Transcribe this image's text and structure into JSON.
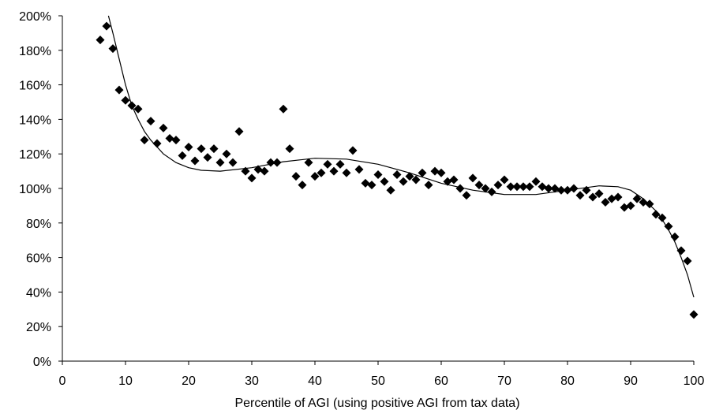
{
  "chart_data": {
    "type": "scatter",
    "title": "",
    "xlabel": "Percentile of AGI (using positive AGI from tax data)",
    "ylabel": "",
    "xlim": [
      0,
      100
    ],
    "ylim": [
      0,
      200
    ],
    "x_ticks": [
      0,
      10,
      20,
      30,
      40,
      50,
      60,
      70,
      80,
      90,
      100
    ],
    "x_tick_labels": [
      "0",
      "10",
      "20",
      "30",
      "40",
      "50",
      "60",
      "70",
      "80",
      "90",
      "100"
    ],
    "y_ticks": [
      0,
      20,
      40,
      60,
      80,
      100,
      120,
      140,
      160,
      180,
      200
    ],
    "y_tick_labels": [
      "0%",
      "20%",
      "40%",
      "60%",
      "80%",
      "100%",
      "120%",
      "140%",
      "160%",
      "180%",
      "200%"
    ],
    "grid": false,
    "legend": "none",
    "marker": "diamond",
    "marker_color": "#000000",
    "points": [
      [
        6,
        186
      ],
      [
        7,
        194
      ],
      [
        8,
        181
      ],
      [
        9,
        157
      ],
      [
        10,
        151
      ],
      [
        11,
        148
      ],
      [
        12,
        146
      ],
      [
        13,
        128
      ],
      [
        14,
        139
      ],
      [
        15,
        126
      ],
      [
        16,
        135
      ],
      [
        17,
        129
      ],
      [
        18,
        128
      ],
      [
        19,
        119
      ],
      [
        20,
        124
      ],
      [
        21,
        116
      ],
      [
        22,
        123
      ],
      [
        23,
        118
      ],
      [
        24,
        123
      ],
      [
        25,
        115
      ],
      [
        26,
        120
      ],
      [
        27,
        115
      ],
      [
        28,
        133
      ],
      [
        29,
        110
      ],
      [
        30,
        106
      ],
      [
        31,
        111
      ],
      [
        32,
        110
      ],
      [
        33,
        115
      ],
      [
        34,
        115
      ],
      [
        35,
        146
      ],
      [
        36,
        123
      ],
      [
        37,
        107
      ],
      [
        38,
        102
      ],
      [
        39,
        115
      ],
      [
        40,
        107
      ],
      [
        41,
        109
      ],
      [
        42,
        114
      ],
      [
        43,
        110
      ],
      [
        44,
        114
      ],
      [
        45,
        109
      ],
      [
        46,
        122
      ],
      [
        47,
        111
      ],
      [
        48,
        103
      ],
      [
        49,
        102
      ],
      [
        50,
        108
      ],
      [
        51,
        104
      ],
      [
        52,
        99
      ],
      [
        53,
        108
      ],
      [
        54,
        104
      ],
      [
        55,
        107
      ],
      [
        56,
        105
      ],
      [
        57,
        109
      ],
      [
        58,
        102
      ],
      [
        59,
        110
      ],
      [
        60,
        109
      ],
      [
        61,
        104
      ],
      [
        62,
        105
      ],
      [
        63,
        100
      ],
      [
        64,
        96
      ],
      [
        65,
        106
      ],
      [
        66,
        102
      ],
      [
        67,
        100
      ],
      [
        68,
        98
      ],
      [
        69,
        102
      ],
      [
        70,
        105
      ],
      [
        71,
        101
      ],
      [
        72,
        101
      ],
      [
        73,
        101
      ],
      [
        74,
        101
      ],
      [
        75,
        104
      ],
      [
        76,
        101
      ],
      [
        77,
        100
      ],
      [
        78,
        100
      ],
      [
        79,
        99
      ],
      [
        80,
        99
      ],
      [
        81,
        100
      ],
      [
        82,
        96
      ],
      [
        83,
        99
      ],
      [
        84,
        95
      ],
      [
        85,
        97
      ],
      [
        86,
        92
      ],
      [
        87,
        94
      ],
      [
        88,
        95
      ],
      [
        89,
        89
      ],
      [
        90,
        90
      ],
      [
        91,
        94
      ],
      [
        92,
        92
      ],
      [
        93,
        91
      ],
      [
        94,
        85
      ],
      [
        95,
        83
      ],
      [
        96,
        78
      ],
      [
        97,
        72
      ],
      [
        98,
        64
      ],
      [
        99,
        58
      ],
      [
        100,
        27
      ]
    ],
    "trendline": {
      "type": "polynomial fit",
      "color": "#000000",
      "points": [
        [
          7.3,
          200
        ],
        [
          8,
          190
        ],
        [
          9,
          175
        ],
        [
          10,
          160
        ],
        [
          11,
          148
        ],
        [
          12,
          140
        ],
        [
          13,
          133
        ],
        [
          14,
          128
        ],
        [
          15,
          124
        ],
        [
          16,
          120
        ],
        [
          18,
          115
        ],
        [
          20,
          112
        ],
        [
          22,
          110.5
        ],
        [
          25,
          110
        ],
        [
          30,
          112
        ],
        [
          35,
          115.5
        ],
        [
          40,
          117.5
        ],
        [
          45,
          117
        ],
        [
          50,
          114
        ],
        [
          55,
          109
        ],
        [
          60,
          103
        ],
        [
          65,
          99
        ],
        [
          70,
          96.5
        ],
        [
          75,
          96.5
        ],
        [
          80,
          99
        ],
        [
          85,
          101.5
        ],
        [
          88,
          101
        ],
        [
          90,
          99
        ],
        [
          92,
          94
        ],
        [
          94,
          87
        ],
        [
          95,
          82
        ],
        [
          96,
          76
        ],
        [
          97,
          69
        ],
        [
          98,
          60
        ],
        [
          99,
          50
        ],
        [
          100,
          37
        ]
      ]
    }
  }
}
